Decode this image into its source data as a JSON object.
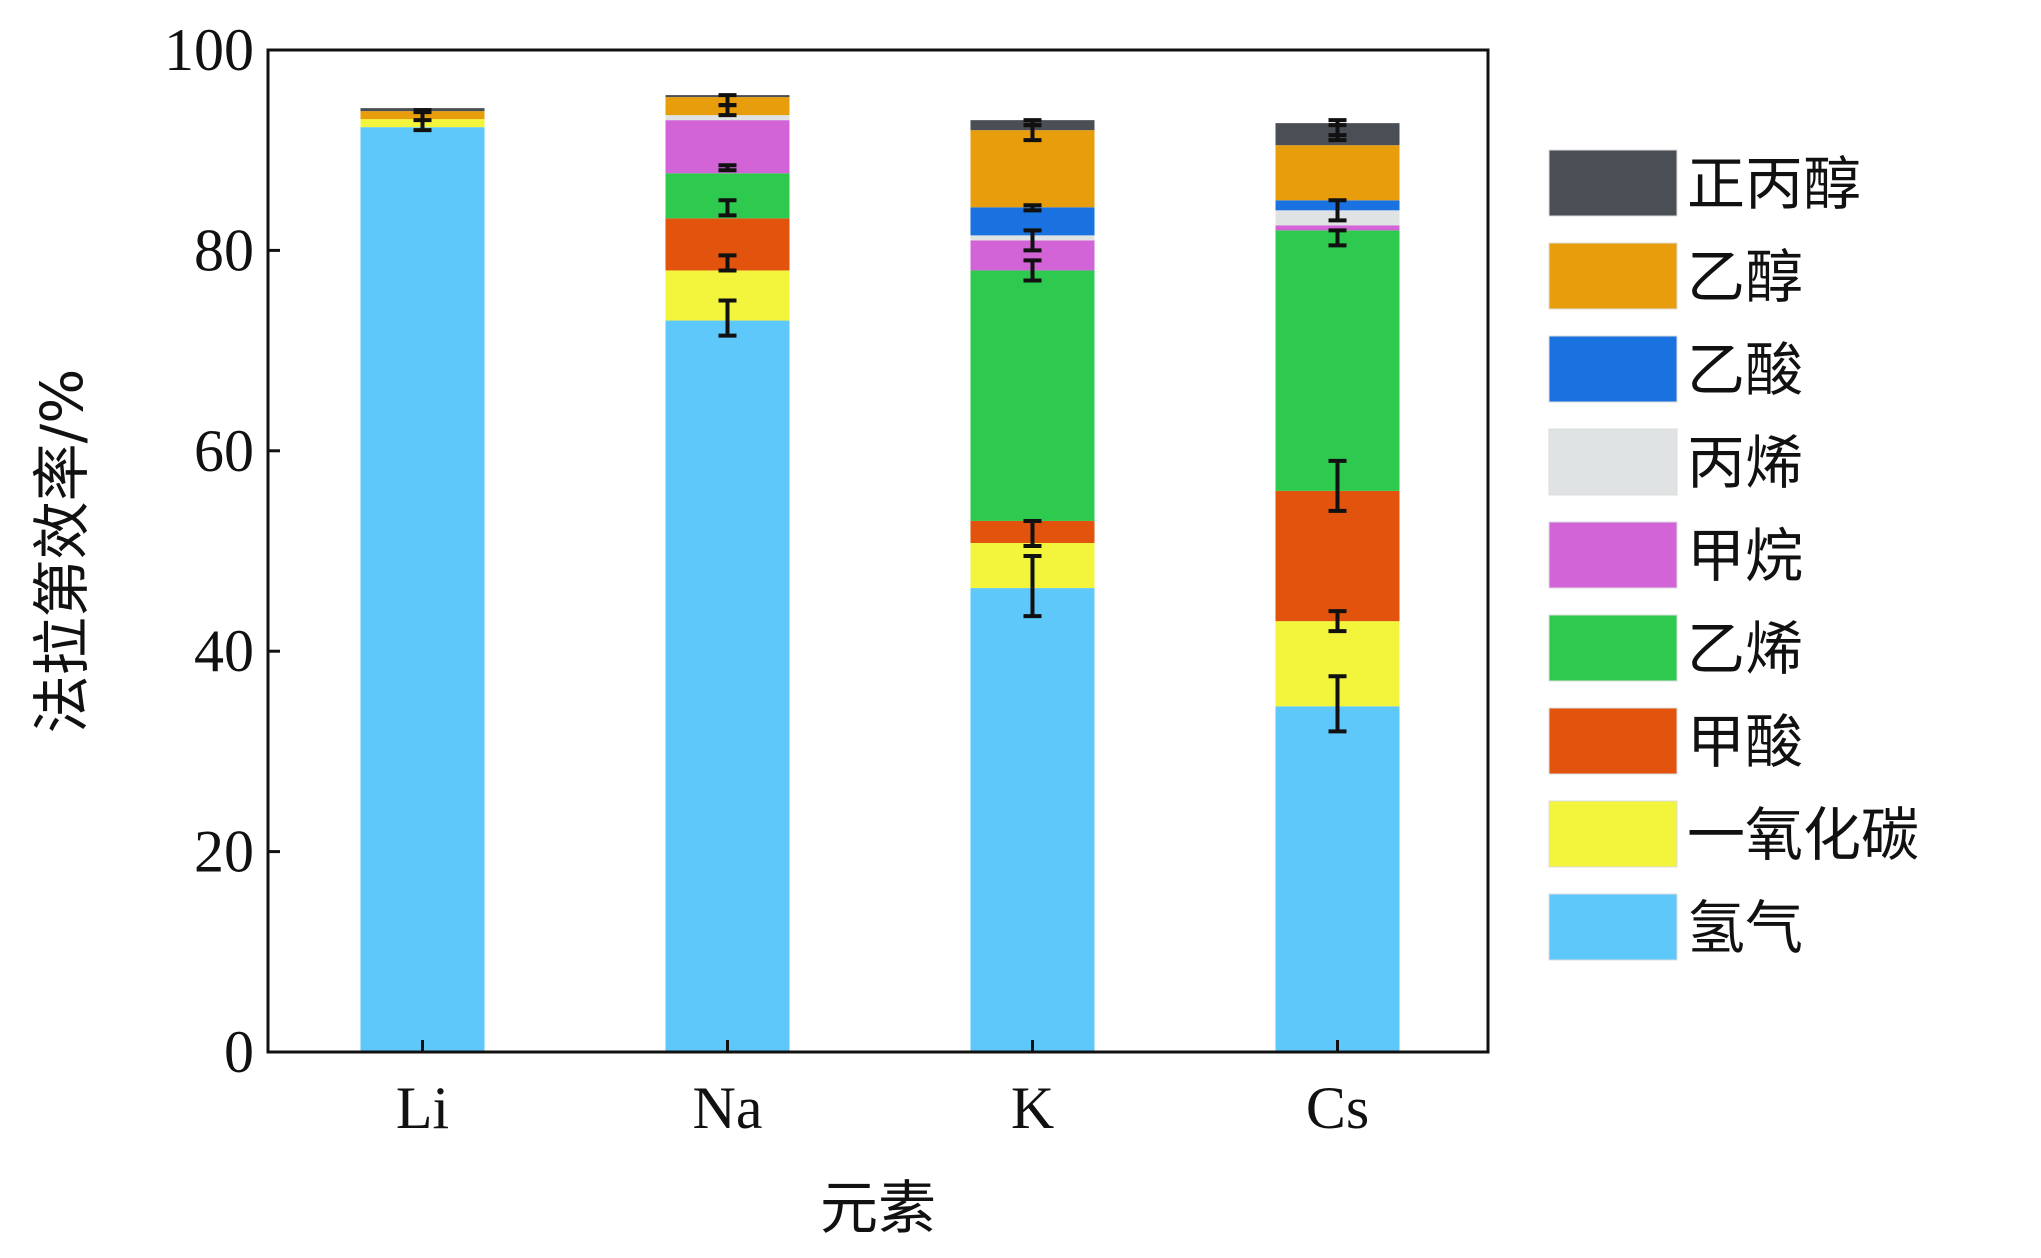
{
  "chart_data": {
    "type": "bar",
    "stacked": true,
    "title": "",
    "xlabel": "元素",
    "ylabel": "法拉第效率/%",
    "ylim": [
      0,
      100
    ],
    "yticks": [
      0,
      20,
      40,
      60,
      80,
      100
    ],
    "grid": false,
    "legend_position": "right",
    "categories": [
      "Li",
      "Na",
      "K",
      "Cs"
    ],
    "series": [
      {
        "name": "氢气",
        "color": "#5ec8fb",
        "values": [
          92.3,
          73.0,
          46.3,
          34.5
        ]
      },
      {
        "name": "一氧化碳",
        "color": "#f2f53c",
        "values": [
          0.8,
          5.0,
          4.5,
          8.5
        ]
      },
      {
        "name": "甲酸",
        "color": "#e2530e",
        "values": [
          0,
          5.2,
          2.2,
          13.0
        ]
      },
      {
        "name": "乙烯",
        "color": "#2ec94f",
        "values": [
          0,
          4.5,
          25.0,
          26.0
        ]
      },
      {
        "name": "甲烷",
        "color": "#d264d8",
        "values": [
          0,
          5.3,
          3.0,
          0.5
        ]
      },
      {
        "name": "丙烯",
        "color": "#dfe3e3",
        "values": [
          0,
          0.5,
          0.5,
          1.5
        ]
      },
      {
        "name": "乙酸",
        "color": "#1a72e0",
        "values": [
          0,
          0,
          2.8,
          1.0
        ]
      },
      {
        "name": "乙醇",
        "color": "#e89e0c",
        "values": [
          0.8,
          1.8,
          7.7,
          5.5
        ]
      },
      {
        "name": "正丙醇",
        "color": "#4a4f55",
        "values": [
          0.3,
          0.2,
          1.0,
          2.2
        ]
      }
    ],
    "error_bars": [
      {
        "category": "Li",
        "points": [
          [
            92.0,
            93.8
          ],
          [
            93.0,
            94.0
          ]
        ]
      },
      {
        "category": "Na",
        "points": [
          [
            71.5,
            75.0
          ],
          [
            78.0,
            79.5
          ],
          [
            83.5,
            85.0
          ],
          [
            88.0,
            88.5
          ],
          [
            93.5,
            94.5
          ],
          [
            94.5,
            95.5
          ]
        ]
      },
      {
        "category": "K",
        "points": [
          [
            43.5,
            49.5
          ],
          [
            50.5,
            53.0
          ],
          [
            77.0,
            79.0
          ],
          [
            80.0,
            82.0
          ],
          [
            84.0,
            84.5
          ],
          [
            91.0,
            92.5
          ],
          [
            92.5,
            93.0
          ]
        ]
      },
      {
        "category": "Cs",
        "points": [
          [
            32.0,
            37.5
          ],
          [
            42.0,
            44.0
          ],
          [
            54.0,
            59.0
          ],
          [
            80.5,
            82.0
          ],
          [
            83.0,
            85.0
          ],
          [
            91.0,
            92.5
          ],
          [
            91.5,
            93.0
          ]
        ]
      }
    ]
  }
}
